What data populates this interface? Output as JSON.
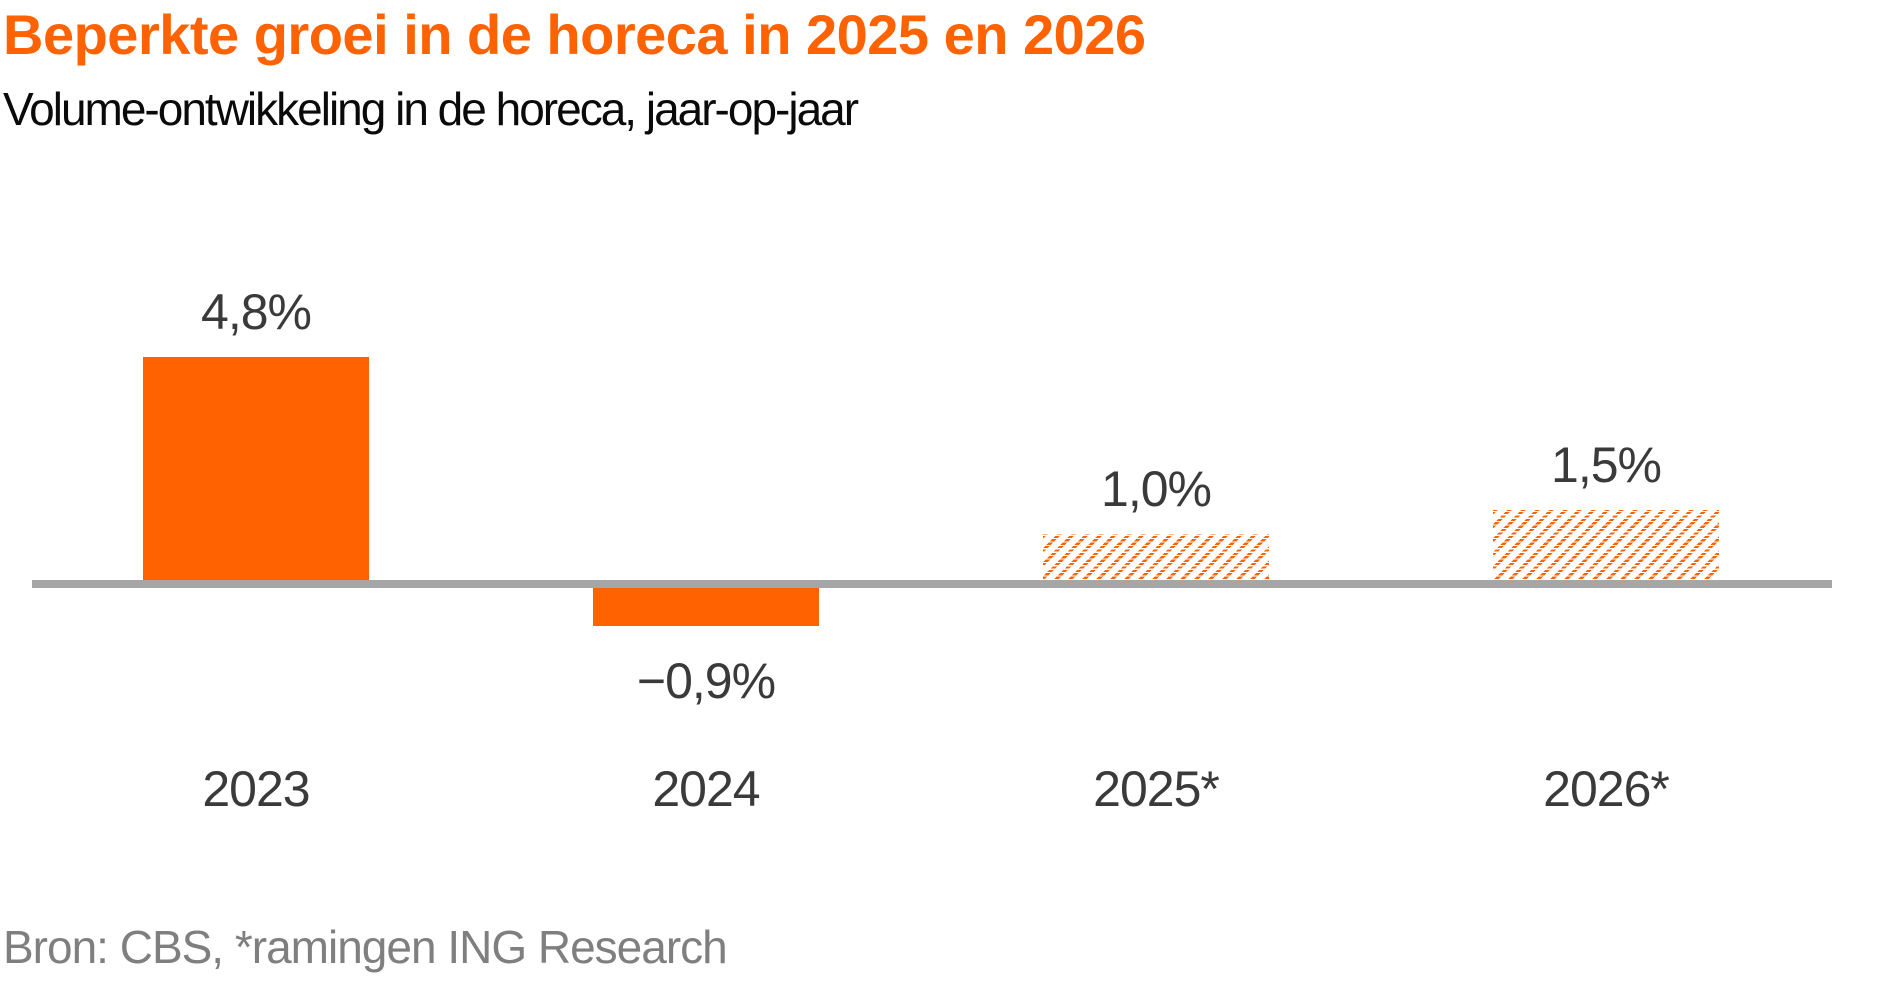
{
  "chart_data": {
    "type": "bar",
    "title": "Beperkte groei in de horeca in 2025 en 2026",
    "subtitle": "Volume-ontwikkeling in de horeca, jaar-op-jaar",
    "source": "Bron: CBS, *ramingen ING Research",
    "categories": [
      "2023",
      "2024",
      "2025*",
      "2026*"
    ],
    "values": [
      4.8,
      -0.9,
      1.0,
      1.5
    ],
    "value_labels": [
      "4,8%",
      "−0,9%",
      "1,0%",
      "1,5%"
    ],
    "bar_styles": [
      "solid",
      "solid",
      "hatched",
      "hatched"
    ],
    "xlabel": "",
    "ylabel": "",
    "unit": "%",
    "gridlines": false,
    "legend": false,
    "zero_baseline": true,
    "colors": {
      "bar_fill": "#FF6200",
      "title": "#FF6200",
      "axis_line": "#A6A6A6",
      "labels": "#3A3A3A",
      "source_text": "#7F7F7F",
      "background": "#FFFFFF"
    }
  }
}
